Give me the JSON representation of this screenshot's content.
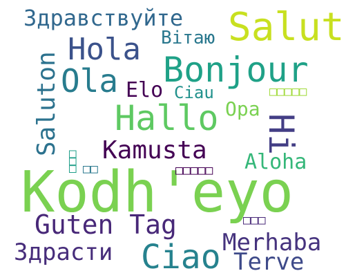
{
  "words": {
    "kodheyo": {
      "text": "Kodh'eyo",
      "color": "#7ad151"
    },
    "salut": {
      "text": "Salut",
      "color": "#c8e020"
    },
    "bonjour": {
      "text": "Bonjour",
      "color": "#1fa187"
    },
    "hallo": {
      "text": "Hallo",
      "color": "#5ec962"
    },
    "hi": {
      "text": "Hi",
      "color": "#433e85"
    },
    "hola": {
      "text": "Hola",
      "color": "#3b528b"
    },
    "ola": {
      "text": "Ola",
      "color": "#287c8e"
    },
    "zdravstv": {
      "text": "Здравствуйте",
      "color": "#31688e"
    },
    "vitayu": {
      "text": "Вітаю",
      "color": "#2a788e"
    },
    "saluton": {
      "text": "Saluton",
      "color": "#2c728e"
    },
    "elo": {
      "text": "Elo",
      "color": "#440154"
    },
    "ciau": {
      "text": "Ciau",
      "color": "#21918c"
    },
    "opa": {
      "text": "Opa",
      "color": "#7ad151"
    },
    "kamusta": {
      "text": "Kamusta",
      "color": "#440154"
    },
    "aloha": {
      "text": "Aloha",
      "color": "#35b779"
    },
    "gutentag": {
      "text": "Guten Tag",
      "color": "#482878"
    },
    "zdrasti": {
      "text": "Здрасти",
      "color": "#472d7b"
    },
    "ciao": {
      "text": "Ciao",
      "color": "#26828e"
    },
    "merhaba": {
      "text": "Merhaba",
      "color": "#46337e"
    },
    "terve": {
      "text": "Terve",
      "color": "#3e4a89"
    },
    "cjk1": {
      "text": "□□□□□",
      "color": "#a0da39"
    },
    "cjk2": {
      "text": "□□□□□",
      "color": "#440154"
    },
    "cjk3": {
      "text": "□□",
      "color": "#2a788e"
    },
    "cjk4": {
      "text": "□□□",
      "color": "#482878"
    },
    "cjk5": {
      "text": "□□□",
      "color": "#1f9e89"
    }
  }
}
